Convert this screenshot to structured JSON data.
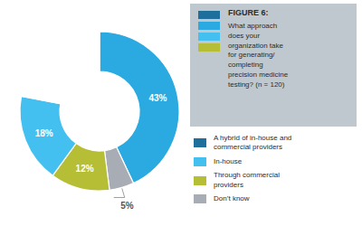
{
  "chart_data": {
    "type": "pie",
    "title": "FIGURE 6:",
    "subtitle": "What approach\ndoes your\norganization take\nfor generating/\ncompleting\nprecision medicine\ntesting? (n = 120)",
    "values": [
      43,
      5,
      12,
      18,
      22
    ],
    "value_labels": [
      "43%",
      "5%",
      "12%",
      "18%",
      null
    ],
    "colors": [
      "#2aaae1",
      "#a8adb5",
      "#b5be34",
      "#43c0f0",
      "#ffffff"
    ],
    "data_labels": true,
    "legend_items": [
      {
        "name": "A hybrid of in-house and\ncommercial providers",
        "color": "#1e6f9c"
      },
      {
        "name": "In-house",
        "color": "#43c0f0"
      },
      {
        "name": "Through commercial\nproviders",
        "color": "#b5be34"
      },
      {
        "name": "Don’t know",
        "color": "#a8adb5"
      }
    ]
  }
}
